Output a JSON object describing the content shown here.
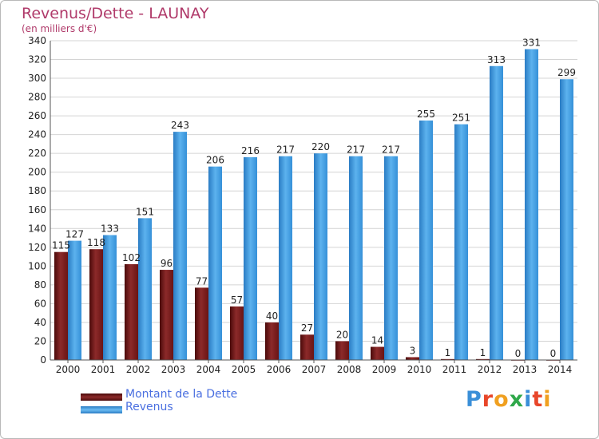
{
  "title": "Revenus/Dette - LAUNAY",
  "subtitle": "(en milliers d'€)",
  "logo_text": "Proxiti",
  "chart_data": {
    "type": "bar",
    "categories": [
      "2000",
      "2001",
      "2002",
      "2003",
      "2004",
      "2005",
      "2006",
      "2007",
      "2008",
      "2009",
      "2010",
      "2011",
      "2012",
      "2013",
      "2014"
    ],
    "series": [
      {
        "name": "Montant de la Dette",
        "color": "#7a1a1a",
        "values": [
          115,
          118,
          102,
          96,
          77,
          57,
          40,
          27,
          20,
          14,
          3,
          1,
          1,
          0,
          0
        ]
      },
      {
        "name": "Revenus",
        "color": "#3d9be0",
        "values": [
          127,
          133,
          151,
          243,
          206,
          216,
          217,
          220,
          217,
          217,
          255,
          251,
          313,
          331,
          299
        ]
      }
    ],
    "yticks": [
      0,
      20,
      40,
      60,
      80,
      100,
      120,
      140,
      160,
      180,
      200,
      220,
      240,
      260,
      280,
      300,
      320,
      340
    ],
    "ylim": [
      0,
      340
    ],
    "grid": true,
    "legend_position": "bottom-left"
  },
  "legend": {
    "items": [
      {
        "label": "Montant de la Dette"
      },
      {
        "label": "Revenus"
      }
    ]
  }
}
